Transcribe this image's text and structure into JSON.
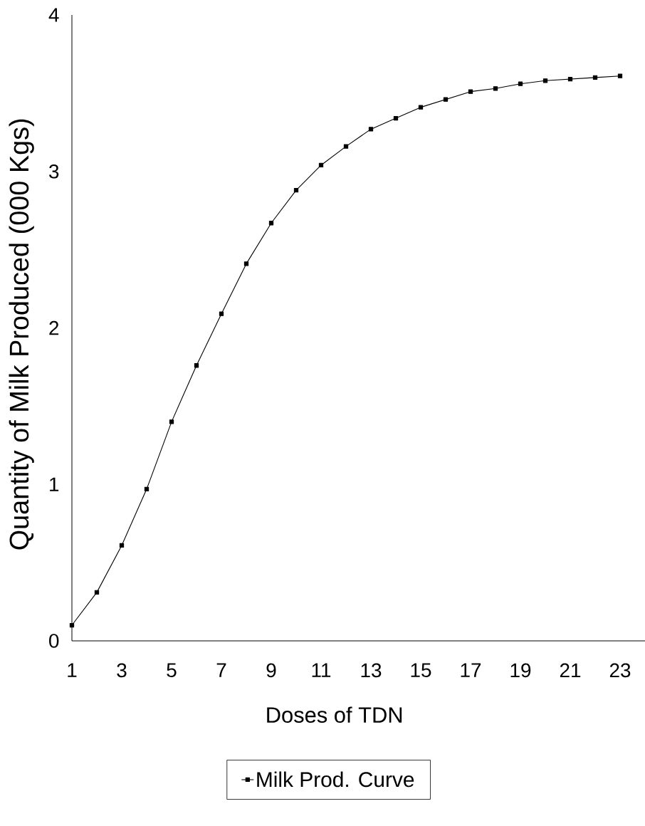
{
  "chart_data": {
    "type": "line",
    "xlabel": "Doses of TDN",
    "ylabel": "Quantity of Milk Produced (000 Kgs)",
    "x": [
      1,
      2,
      3,
      4,
      5,
      6,
      7,
      8,
      9,
      10,
      11,
      12,
      13,
      14,
      15,
      16,
      17,
      18,
      19,
      20,
      21,
      22,
      23
    ],
    "series": [
      {
        "name": "Milk Prod. Curve",
        "color": "#000000",
        "values": [
          0.1,
          0.31,
          0.61,
          0.97,
          1.4,
          1.76,
          2.09,
          2.41,
          2.67,
          2.88,
          3.04,
          3.16,
          3.27,
          3.34,
          3.41,
          3.46,
          3.51,
          3.53,
          3.56,
          3.58,
          3.59,
          3.6,
          3.61
        ]
      }
    ],
    "xlim": [
      1,
      24
    ],
    "ylim": [
      0,
      4
    ],
    "xticks": [
      1,
      3,
      5,
      7,
      9,
      11,
      13,
      15,
      17,
      19,
      21,
      23
    ],
    "yticks": [
      0,
      1,
      2,
      3,
      4
    ],
    "marker": "square",
    "legend": "bottom"
  }
}
